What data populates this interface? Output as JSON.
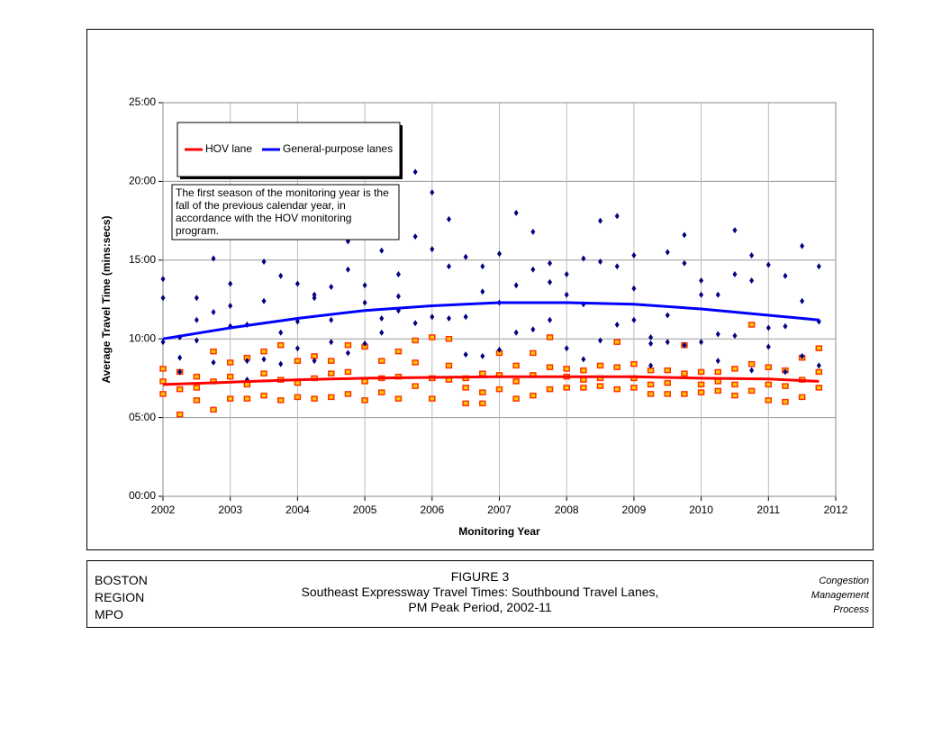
{
  "chart_data": {
    "type": "scatter",
    "y_label": "Average Travel Time (mins:secs)",
    "x_label": "Monitoring Year",
    "annotation": [
      "The first season of the monitoring year is the",
      "fall of the previous calendar year, in",
      "accordance with the HOV monitoring",
      "program."
    ],
    "xlim": [
      2002,
      2012
    ],
    "xticks": [
      2002,
      2003,
      2004,
      2005,
      2006,
      2007,
      2008,
      2009,
      2010,
      2011,
      2012
    ],
    "ylim": [
      0,
      25
    ],
    "yticks": [
      {
        "value": 0,
        "label": "00:00"
      },
      {
        "value": 5,
        "label": "05:00"
      },
      {
        "value": 10,
        "label": "10:00"
      },
      {
        "value": 15,
        "label": "15:00"
      },
      {
        "value": 20,
        "label": "20:00"
      },
      {
        "value": 25,
        "label": "25:00"
      }
    ],
    "grid": true,
    "legend": "upper left",
    "series": [
      {
        "type": "scatter",
        "marker": "square",
        "color": "#ff3300",
        "x": [
          2002,
          2002,
          2002,
          2002.25,
          2002.25,
          2002.25,
          2002.5,
          2002.5,
          2002.5,
          2002.75,
          2002.75,
          2002.75,
          2003,
          2003,
          2003,
          2003.25,
          2003.25,
          2003.25,
          2003.5,
          2003.5,
          2003.5,
          2003.75,
          2003.75,
          2003.75,
          2004,
          2004,
          2004,
          2004.25,
          2004.25,
          2004.25,
          2004.5,
          2004.5,
          2004.5,
          2004.75,
          2004.75,
          2004.75,
          2005,
          2005,
          2005,
          2005.25,
          2005.25,
          2005.25,
          2005.5,
          2005.5,
          2005.5,
          2005.75,
          2005.75,
          2005.75,
          2006,
          2006,
          2006,
          2006.25,
          2006.25,
          2006.25,
          2006.5,
          2006.5,
          2006.5,
          2006.75,
          2006.75,
          2006.75,
          2007,
          2007,
          2007,
          2007.25,
          2007.25,
          2007.25,
          2007.5,
          2007.5,
          2007.5,
          2007.75,
          2007.75,
          2007.75,
          2008,
          2008,
          2008,
          2008.25,
          2008.25,
          2008.25,
          2008.5,
          2008.5,
          2008.5,
          2008.75,
          2008.75,
          2008.75,
          2009,
          2009,
          2009,
          2009.25,
          2009.25,
          2009.25,
          2009.5,
          2009.5,
          2009.5,
          2009.75,
          2009.75,
          2009.75,
          2010,
          2010,
          2010,
          2010.25,
          2010.25,
          2010.25,
          2010.5,
          2010.5,
          2010.5,
          2010.75,
          2010.75,
          2010.75,
          2011,
          2011,
          2011,
          2011.25,
          2011.25,
          2011.25,
          2011.5,
          2011.5,
          2011.5,
          2011.75,
          2011.75,
          2011.75
        ],
        "values": [
          6.5,
          7.3,
          8.1,
          5.2,
          6.8,
          7.9,
          6.1,
          6.9,
          7.6,
          5.5,
          7.3,
          9.2,
          6.2,
          7.6,
          8.5,
          6.2,
          7.1,
          8.8,
          6.4,
          7.8,
          9.2,
          6.1,
          7.4,
          9.6,
          6.3,
          7.2,
          8.6,
          6.2,
          7.5,
          8.9,
          6.3,
          7.8,
          8.6,
          6.5,
          7.9,
          9.6,
          6.1,
          7.3,
          9.5,
          6.6,
          7.5,
          8.6,
          6.2,
          7.6,
          9.2,
          7.0,
          8.5,
          9.9,
          6.2,
          7.5,
          10.1,
          7.4,
          8.3,
          10.0,
          5.9,
          6.9,
          7.5,
          5.9,
          6.6,
          7.8,
          6.8,
          7.7,
          9.1,
          6.2,
          7.3,
          8.3,
          6.4,
          7.7,
          9.1,
          6.8,
          8.2,
          10.1,
          6.9,
          7.6,
          8.1,
          6.9,
          7.4,
          8.0,
          7.0,
          7.5,
          8.3,
          6.8,
          8.2,
          9.8,
          6.9,
          7.5,
          8.4,
          6.5,
          7.1,
          8.0,
          6.5,
          7.2,
          8.0,
          6.5,
          7.8,
          9.6,
          6.6,
          7.1,
          7.9,
          6.7,
          7.3,
          7.9,
          6.4,
          7.1,
          8.1,
          6.7,
          8.4,
          10.9,
          6.1,
          7.1,
          8.2,
          6.0,
          7.0,
          8.0,
          6.3,
          7.4,
          8.8,
          6.9,
          7.9,
          9.4
        ]
      },
      {
        "type": "scatter",
        "marker": "diamond",
        "color": "#000080",
        "x": [
          2002,
          2002,
          2002,
          2002.25,
          2002.25,
          2002.25,
          2002.5,
          2002.5,
          2002.5,
          2002.75,
          2002.75,
          2002.75,
          2003,
          2003,
          2003,
          2003.25,
          2003.25,
          2003.25,
          2003.5,
          2003.5,
          2003.5,
          2003.75,
          2003.75,
          2003.75,
          2004,
          2004,
          2004,
          2004.25,
          2004.25,
          2004.25,
          2004.5,
          2004.5,
          2004.5,
          2004.75,
          2004.75,
          2004.75,
          2005,
          2005,
          2005,
          2005.25,
          2005.25,
          2005.25,
          2005.5,
          2005.5,
          2005.5,
          2005.75,
          2005.75,
          2005.75,
          2006,
          2006,
          2006,
          2006.25,
          2006.25,
          2006.25,
          2006.5,
          2006.5,
          2006.5,
          2006.75,
          2006.75,
          2006.75,
          2007,
          2007,
          2007,
          2007.25,
          2007.25,
          2007.25,
          2007.5,
          2007.5,
          2007.5,
          2007.75,
          2007.75,
          2007.75,
          2008,
          2008,
          2008,
          2008.25,
          2008.25,
          2008.25,
          2008.5,
          2008.5,
          2008.5,
          2008.75,
          2008.75,
          2008.75,
          2009,
          2009,
          2009,
          2009.25,
          2009.25,
          2009.25,
          2009.5,
          2009.5,
          2009.5,
          2009.75,
          2009.75,
          2009.75,
          2010,
          2010,
          2010,
          2010.25,
          2010.25,
          2010.25,
          2010.5,
          2010.5,
          2010.5,
          2010.75,
          2010.75,
          2010.75,
          2011,
          2011,
          2011,
          2011.25,
          2011.25,
          2011.25,
          2011.5,
          2011.5,
          2011.5,
          2011.75,
          2011.75,
          2011.75
        ],
        "values": [
          9.8,
          12.6,
          13.8,
          7.9,
          8.8,
          10.1,
          9.9,
          11.2,
          12.6,
          8.5,
          11.7,
          15.1,
          10.8,
          12.1,
          13.5,
          7.4,
          8.6,
          10.9,
          8.7,
          12.4,
          14.9,
          8.4,
          10.4,
          14.0,
          9.4,
          11.1,
          13.5,
          8.6,
          12.6,
          12.8,
          9.8,
          11.2,
          13.3,
          9.1,
          14.4,
          16.2,
          9.7,
          12.3,
          13.4,
          10.4,
          11.3,
          15.6,
          11.8,
          12.7,
          14.1,
          11.0,
          16.5,
          20.6,
          11.4,
          15.7,
          19.3,
          11.3,
          14.6,
          17.6,
          9.0,
          11.4,
          15.2,
          8.9,
          13.0,
          14.6,
          9.3,
          12.3,
          15.4,
          10.4,
          13.4,
          18.0,
          10.6,
          14.4,
          16.8,
          11.2,
          13.6,
          14.8,
          9.4,
          12.8,
          14.1,
          8.7,
          12.2,
          15.1,
          9.9,
          14.9,
          17.5,
          10.9,
          14.6,
          17.8,
          11.2,
          13.2,
          15.3,
          8.3,
          9.7,
          10.1,
          9.8,
          11.5,
          15.5,
          9.6,
          14.8,
          16.6,
          9.8,
          12.8,
          13.7,
          8.6,
          10.3,
          12.8,
          10.2,
          14.1,
          16.9,
          8.0,
          13.7,
          15.3,
          9.5,
          10.7,
          14.7,
          7.9,
          10.8,
          14.0,
          8.9,
          12.4,
          15.9,
          8.3,
          11.1,
          14.6
        ]
      },
      {
        "name": "HOV lane",
        "type": "line",
        "color": "#ff0000",
        "x": [
          2002,
          2003,
          2004,
          2005,
          2006,
          2007,
          2008,
          2009,
          2010,
          2011,
          2011.75
        ],
        "values": [
          7.1,
          7.25,
          7.4,
          7.5,
          7.55,
          7.6,
          7.6,
          7.6,
          7.5,
          7.45,
          7.3
        ]
      },
      {
        "name": "General-purpose lanes",
        "type": "line",
        "color": "#0000ff",
        "x": [
          2002,
          2003,
          2004,
          2005,
          2006,
          2007,
          2008,
          2009,
          2010,
          2011,
          2011.75
        ],
        "values": [
          10.0,
          10.7,
          11.3,
          11.8,
          12.1,
          12.3,
          12.3,
          12.2,
          11.9,
          11.5,
          11.2
        ]
      }
    ]
  },
  "footer": {
    "org": [
      "BOSTON",
      "REGION",
      "MPO"
    ],
    "figure": [
      "FIGURE  3",
      "Southeast Expressway Travel Times: Southbound Travel Lanes,",
      "PM Peak Period, 2002-11"
    ],
    "program": [
      "Congestion",
      "Management",
      "Process"
    ]
  }
}
